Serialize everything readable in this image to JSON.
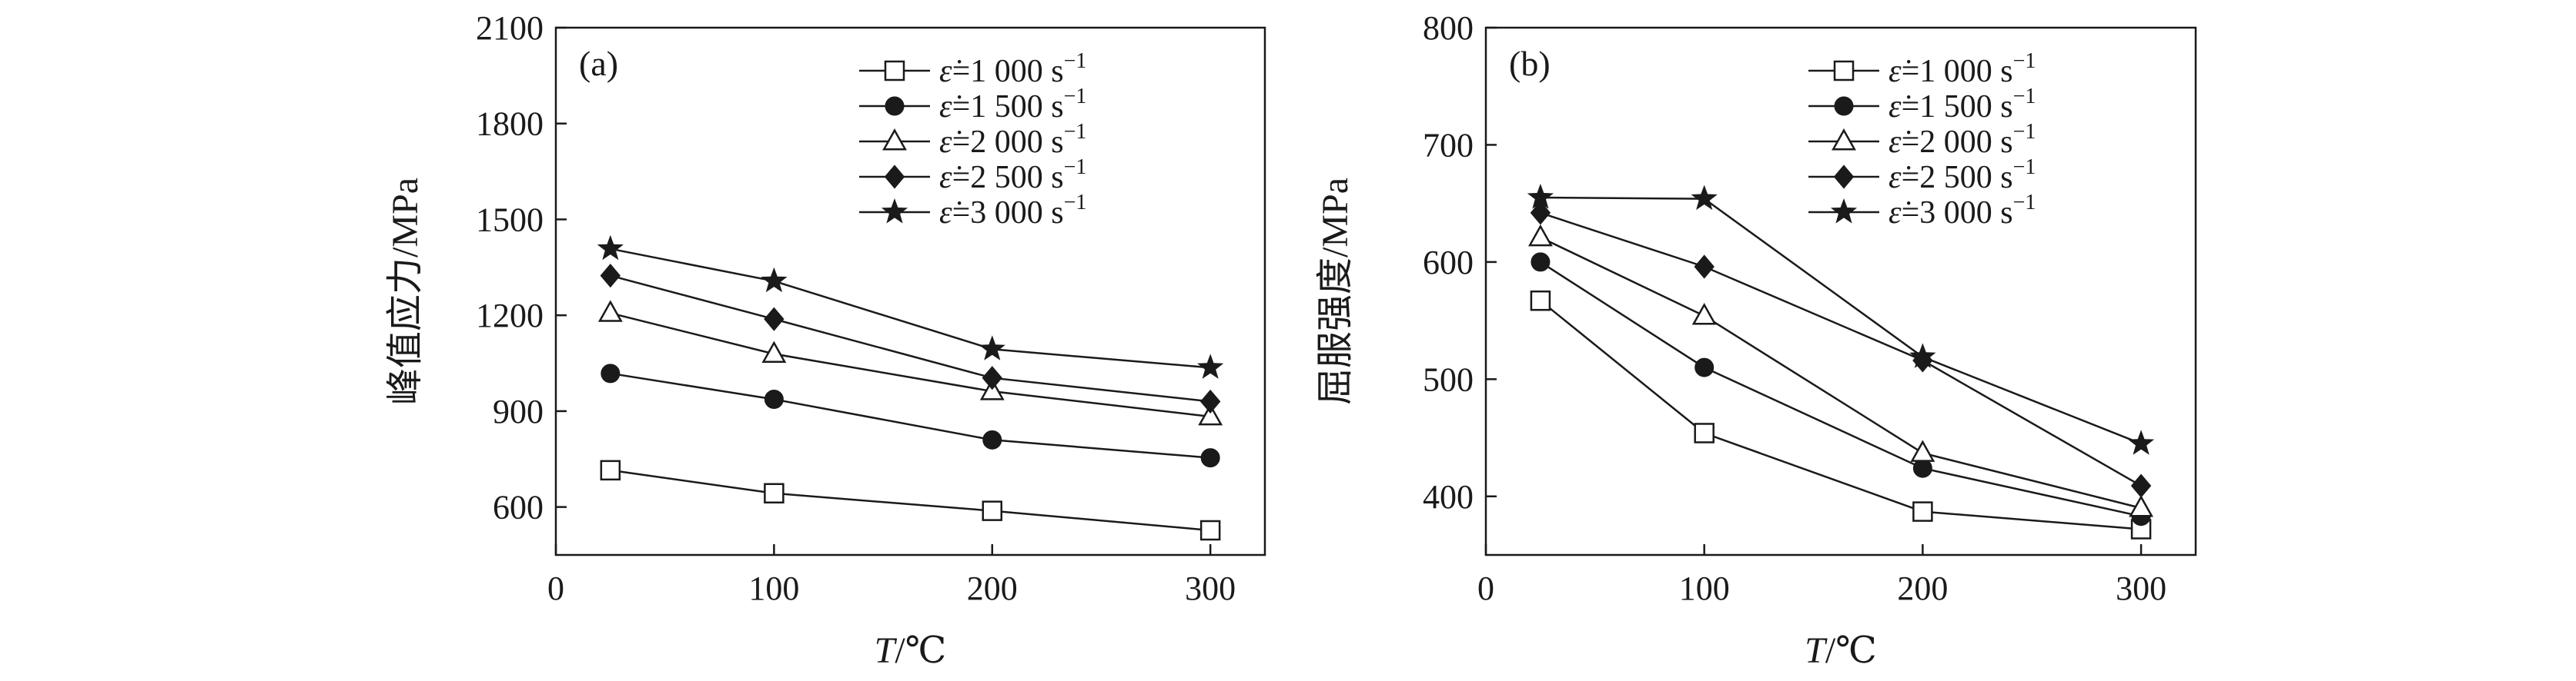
{
  "chart_data": [
    {
      "type": "line",
      "panel_label": "(a)",
      "xlabel_italic": "T",
      "xlabel_unit": "/℃",
      "ylabel": "峰值应力/MPa",
      "x": [
        25,
        100,
        200,
        300
      ],
      "xlim": [
        0,
        325
      ],
      "xticks": [
        0,
        100,
        200,
        300
      ],
      "ylim": [
        450,
        2100
      ],
      "yticks": [
        600,
        900,
        1200,
        1500,
        1800,
        2100
      ],
      "legend_position": "top-right",
      "series": [
        {
          "name": "=1 000 s",
          "values": [
            715,
            643,
            588,
            527
          ],
          "marker": "square-open"
        },
        {
          "name": "=1 500 s",
          "values": [
            1018,
            937,
            810,
            754
          ],
          "marker": "circle-filled"
        },
        {
          "name": "=2 000 s",
          "values": [
            1207,
            1079,
            962,
            883
          ],
          "marker": "triangle-open"
        },
        {
          "name": "=2 500 s",
          "values": [
            1324,
            1188,
            1004,
            930
          ],
          "marker": "diamond-filled"
        },
        {
          "name": "=3 000 s",
          "values": [
            1408,
            1307,
            1094,
            1036
          ],
          "marker": "star-filled"
        }
      ]
    },
    {
      "type": "line",
      "panel_label": "(b)",
      "xlabel_italic": "T",
      "xlabel_unit": "/℃",
      "ylabel": "屈服强度/MPa",
      "x": [
        25,
        100,
        200,
        300
      ],
      "xlim": [
        0,
        325
      ],
      "xticks": [
        0,
        100,
        200,
        300
      ],
      "ylim": [
        350,
        800
      ],
      "yticks": [
        400,
        500,
        600,
        700,
        800
      ],
      "legend_position": "top-right",
      "series": [
        {
          "name": "=1 000 s",
          "values": [
            567,
            454,
            387,
            372
          ],
          "marker": "square-open"
        },
        {
          "name": "=1 500 s",
          "values": [
            600,
            510,
            424,
            383
          ],
          "marker": "circle-filled"
        },
        {
          "name": "=2 000 s",
          "values": [
            621,
            554,
            437,
            390
          ],
          "marker": "triangle-open"
        },
        {
          "name": "=2 500 s",
          "values": [
            642,
            596,
            516,
            409
          ],
          "marker": "diamond-filled"
        },
        {
          "name": "=3 000 s",
          "values": [
            655,
            654,
            519,
            445
          ],
          "marker": "star-filled"
        }
      ]
    }
  ],
  "legend": {
    "strain_rate_symbol": "ε̇",
    "superscript": "−1"
  }
}
